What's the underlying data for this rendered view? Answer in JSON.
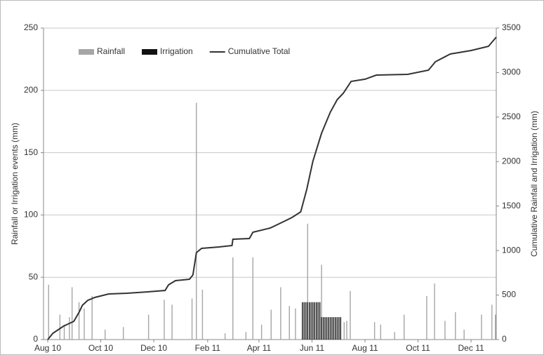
{
  "chart_data": {
    "type": "bar-line",
    "ylabel": "Rainfall or Irrigation events (mm)",
    "y2label": "Cumulative Rainfall and Irrigation (mm)",
    "xlim": [
      0,
      516
    ],
    "xticks": [
      {
        "value": 0,
        "label": "Aug 10"
      },
      {
        "value": 61,
        "label": "Oct 10"
      },
      {
        "value": 122,
        "label": "Dec 10"
      },
      {
        "value": 184,
        "label": "Feb 11"
      },
      {
        "value": 243,
        "label": "Apr 11"
      },
      {
        "value": 304,
        "label": "Jun 11"
      },
      {
        "value": 365,
        "label": "Aug 11"
      },
      {
        "value": 426,
        "label": "Oct 11"
      },
      {
        "value": 487,
        "label": "Dec 11"
      }
    ],
    "ylim": [
      0,
      250
    ],
    "yticks": [
      0,
      50,
      100,
      150,
      200,
      250
    ],
    "y2lim": [
      0,
      3500
    ],
    "y2ticks": [
      0,
      500,
      1000,
      1500,
      2000,
      2500,
      3000,
      3500
    ],
    "grid": true,
    "legend": "top-left",
    "series": [
      {
        "name": "Rainfall",
        "kind": "bar",
        "color": "#a6a6a6",
        "x": [
          1,
          14,
          19,
          25,
          28,
          36,
          42,
          51,
          66,
          87,
          116,
          134,
          143,
          166,
          171,
          178,
          204,
          213,
          228,
          236,
          246,
          257,
          268,
          278,
          285,
          299,
          315,
          341,
          344,
          348,
          376,
          383,
          399,
          410,
          436,
          445,
          457,
          469,
          479,
          499,
          511,
          515
        ],
        "values": [
          44,
          20,
          12,
          18,
          42,
          30,
          25,
          35,
          8,
          10,
          20,
          32,
          28,
          33,
          190,
          40,
          5,
          66,
          6,
          66,
          12,
          24,
          42,
          27,
          25,
          93,
          60,
          14,
          15,
          39,
          14,
          12,
          6,
          20,
          35,
          45,
          15,
          22,
          8,
          20,
          28,
          20
        ]
      },
      {
        "name": "Irrigation",
        "kind": "bar",
        "color": "#111111",
        "x": [
          293,
          295,
          297,
          299,
          301,
          303,
          305,
          307,
          309,
          311,
          313,
          315,
          317,
          319,
          321,
          323,
          325,
          327,
          329,
          331,
          333,
          335,
          337
        ],
        "values": [
          30,
          30,
          30,
          30,
          30,
          30,
          30,
          30,
          30,
          30,
          30,
          18,
          18,
          18,
          18,
          18,
          18,
          18,
          18,
          18,
          18,
          18,
          18
        ]
      },
      {
        "name": "Cumulative Total",
        "kind": "line",
        "axis": "y2",
        "color": "#333333",
        "x": [
          0,
          6,
          18,
          30,
          36,
          40,
          46,
          54,
          70,
          91,
          115,
          135,
          139,
          147,
          163,
          167,
          171,
          177,
          196,
          212,
          213,
          232,
          236,
          256,
          268,
          281,
          291,
          298,
          305,
          315,
          325,
          333,
          340,
          349,
          365,
          378,
          414,
          438,
          446,
          463,
          487,
          507,
          516
        ],
        "values": [
          0,
          71,
          150,
          205,
          307,
          386,
          441,
          473,
          512,
          520,
          536,
          552,
          615,
          662,
          678,
          725,
          977,
          1025,
          1040,
          1056,
          1127,
          1135,
          1206,
          1253,
          1309,
          1372,
          1435,
          1687,
          2002,
          2318,
          2554,
          2696,
          2767,
          2901,
          2925,
          2972,
          2980,
          3027,
          3122,
          3208,
          3248,
          3295,
          3398
        ]
      }
    ]
  }
}
